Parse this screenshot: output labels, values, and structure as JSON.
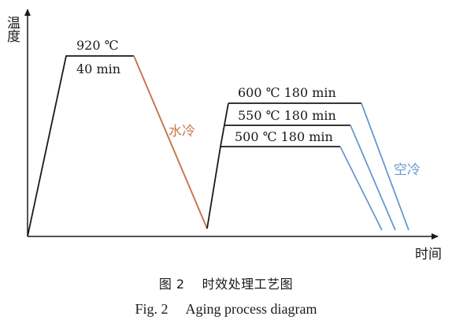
{
  "axes": {
    "y_label": "温度",
    "x_label": "时间"
  },
  "solution_step": {
    "temperature_label": "920 ℃",
    "duration_label": "40 min",
    "quench_label": "水冷",
    "quench_color": "#c87850"
  },
  "aging_steps": [
    {
      "label": "600 ℃ 180 min"
    },
    {
      "label": "550 ℃ 180 min"
    },
    {
      "label": "500 ℃ 180 min"
    }
  ],
  "air_cool": {
    "label": "空冷",
    "color": "#6a98cf"
  },
  "caption": {
    "zh_number": "图 2",
    "zh_title": "时效处理工艺图",
    "en_number": "Fig. 2",
    "en_title": "Aging process diagram"
  }
}
